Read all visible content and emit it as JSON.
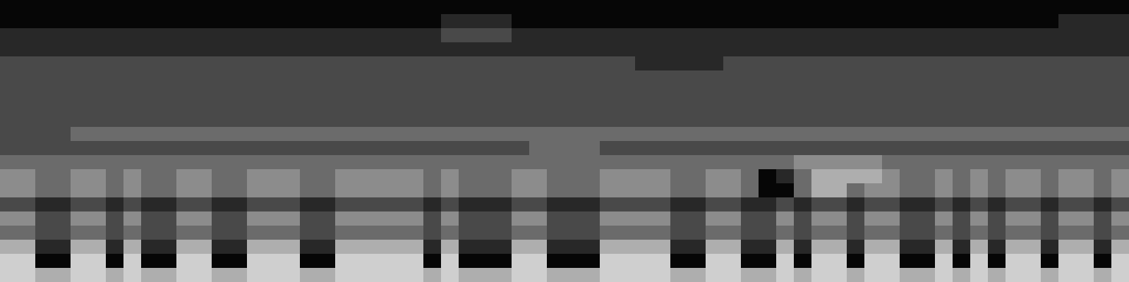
{
  "chart_data": {
    "type": "heatmap",
    "tick_labels": false,
    "cells": [
      [
        1,
        1,
        1,
        1,
        1,
        1,
        1,
        1,
        1,
        1,
        1,
        1,
        1,
        1,
        1,
        1,
        1,
        1,
        1,
        1,
        1,
        1,
        1,
        1,
        1,
        1,
        1,
        1,
        1,
        1,
        1,
        1,
        1,
        1,
        1,
        1,
        1,
        1,
        1,
        1,
        1,
        1,
        1,
        1,
        1,
        1,
        1,
        1,
        1,
        1,
        1,
        1,
        1,
        1,
        1,
        1,
        1,
        1,
        1,
        1,
        1,
        1,
        1,
        1
      ],
      [
        1,
        1,
        1,
        1,
        1,
        1,
        1,
        1,
        1,
        1,
        1,
        1,
        1,
        1,
        1,
        1,
        1,
        1,
        1,
        1,
        1,
        1,
        1,
        1,
        1,
        2,
        2,
        2,
        2,
        1,
        1,
        1,
        1,
        1,
        1,
        1,
        1,
        1,
        1,
        1,
        1,
        1,
        1,
        1,
        1,
        1,
        1,
        1,
        1,
        1,
        1,
        1,
        1,
        1,
        1,
        1,
        1,
        1,
        1,
        1,
        2,
        2,
        2,
        2
      ],
      [
        2,
        2,
        2,
        2,
        2,
        2,
        2,
        2,
        2,
        2,
        2,
        2,
        2,
        2,
        2,
        2,
        2,
        2,
        2,
        2,
        2,
        2,
        2,
        2,
        2,
        3,
        3,
        3,
        3,
        2,
        2,
        2,
        2,
        2,
        2,
        2,
        2,
        2,
        2,
        2,
        2,
        2,
        2,
        2,
        2,
        2,
        2,
        2,
        2,
        2,
        2,
        2,
        2,
        2,
        2,
        2,
        2,
        2,
        2,
        2,
        2,
        2,
        2,
        2
      ],
      [
        2,
        2,
        2,
        2,
        2,
        2,
        2,
        2,
        2,
        2,
        2,
        2,
        2,
        2,
        2,
        2,
        2,
        2,
        2,
        2,
        2,
        2,
        2,
        2,
        2,
        2,
        2,
        2,
        2,
        2,
        2,
        2,
        2,
        2,
        2,
        2,
        2,
        2,
        2,
        2,
        2,
        2,
        2,
        2,
        2,
        2,
        2,
        2,
        2,
        2,
        2,
        2,
        2,
        2,
        2,
        2,
        2,
        2,
        2,
        2,
        2,
        2,
        2,
        2
      ],
      [
        3,
        3,
        3,
        3,
        3,
        3,
        3,
        3,
        3,
        3,
        3,
        3,
        3,
        3,
        3,
        3,
        3,
        3,
        3,
        3,
        3,
        3,
        3,
        3,
        3,
        3,
        3,
        3,
        3,
        3,
        3,
        3,
        3,
        3,
        3,
        3,
        2,
        2,
        2,
        2,
        2,
        3,
        3,
        3,
        3,
        3,
        3,
        3,
        3,
        3,
        3,
        3,
        3,
        3,
        3,
        3,
        3,
        3,
        3,
        3,
        3,
        3,
        3,
        3
      ],
      [
        3,
        3,
        3,
        3,
        3,
        3,
        3,
        3,
        3,
        3,
        3,
        3,
        3,
        3,
        3,
        3,
        3,
        3,
        3,
        3,
        3,
        3,
        3,
        3,
        3,
        3,
        3,
        3,
        3,
        3,
        3,
        3,
        3,
        3,
        3,
        3,
        3,
        3,
        3,
        3,
        3,
        3,
        3,
        3,
        3,
        3,
        3,
        3,
        3,
        3,
        3,
        3,
        3,
        3,
        3,
        3,
        3,
        3,
        3,
        3,
        3,
        3,
        3,
        3
      ],
      [
        3,
        3,
        3,
        3,
        3,
        3,
        3,
        3,
        3,
        3,
        3,
        3,
        3,
        3,
        3,
        3,
        3,
        3,
        3,
        3,
        3,
        3,
        3,
        3,
        3,
        3,
        3,
        3,
        3,
        3,
        3,
        3,
        3,
        3,
        3,
        3,
        3,
        3,
        3,
        3,
        3,
        3,
        3,
        3,
        3,
        3,
        3,
        3,
        3,
        3,
        3,
        3,
        3,
        3,
        3,
        3,
        3,
        3,
        3,
        3,
        3,
        3,
        3,
        3
      ],
      [
        3,
        3,
        3,
        3,
        3,
        3,
        3,
        3,
        3,
        3,
        3,
        3,
        3,
        3,
        3,
        3,
        3,
        3,
        3,
        3,
        3,
        3,
        3,
        3,
        3,
        3,
        3,
        3,
        3,
        3,
        3,
        3,
        3,
        3,
        3,
        3,
        3,
        3,
        3,
        3,
        3,
        3,
        3,
        3,
        3,
        3,
        3,
        3,
        3,
        3,
        3,
        3,
        3,
        3,
        3,
        3,
        3,
        3,
        3,
        3,
        3,
        3,
        3,
        3
      ],
      [
        3,
        3,
        3,
        3,
        3,
        3,
        3,
        3,
        3,
        3,
        3,
        3,
        3,
        3,
        3,
        3,
        3,
        3,
        3,
        3,
        3,
        3,
        3,
        3,
        3,
        3,
        3,
        3,
        3,
        3,
        3,
        3,
        3,
        3,
        3,
        3,
        3,
        3,
        3,
        3,
        3,
        3,
        3,
        3,
        3,
        3,
        3,
        3,
        3,
        3,
        3,
        3,
        3,
        3,
        3,
        3,
        3,
        3,
        3,
        3,
        3,
        3,
        3,
        3
      ],
      [
        3,
        3,
        3,
        3,
        4,
        4,
        4,
        4,
        4,
        4,
        4,
        4,
        4,
        4,
        4,
        4,
        4,
        4,
        4,
        4,
        4,
        4,
        4,
        4,
        4,
        4,
        4,
        4,
        4,
        4,
        4,
        4,
        4,
        4,
        4,
        4,
        4,
        4,
        4,
        4,
        4,
        4,
        4,
        4,
        4,
        4,
        4,
        4,
        4,
        4,
        4,
        4,
        4,
        4,
        4,
        4,
        4,
        4,
        4,
        4,
        4,
        4,
        4,
        4
      ],
      [
        3,
        3,
        3,
        3,
        3,
        3,
        3,
        3,
        3,
        3,
        3,
        3,
        3,
        3,
        3,
        3,
        3,
        3,
        3,
        3,
        3,
        3,
        3,
        3,
        3,
        3,
        3,
        3,
        3,
        3,
        4,
        4,
        4,
        4,
        3,
        3,
        3,
        3,
        3,
        3,
        3,
        3,
        3,
        3,
        3,
        3,
        3,
        3,
        3,
        3,
        3,
        3,
        3,
        3,
        3,
        3,
        3,
        3,
        3,
        3,
        3,
        3,
        3,
        3
      ],
      [
        4,
        4,
        4,
        4,
        4,
        4,
        4,
        4,
        4,
        4,
        4,
        4,
        4,
        4,
        4,
        4,
        4,
        4,
        4,
        4,
        4,
        4,
        4,
        4,
        4,
        4,
        4,
        4,
        4,
        4,
        4,
        4,
        4,
        4,
        4,
        4,
        4,
        4,
        4,
        4,
        4,
        4,
        4,
        4,
        4,
        5,
        5,
        5,
        5,
        5,
        4,
        4,
        4,
        4,
        4,
        4,
        4,
        4,
        4,
        4,
        4,
        4,
        4,
        4
      ],
      [
        5,
        5,
        4,
        4,
        5,
        5,
        4,
        5,
        4,
        4,
        5,
        5,
        4,
        4,
        5,
        5,
        5,
        4,
        4,
        5,
        5,
        5,
        5,
        5,
        4,
        5,
        4,
        4,
        4,
        5,
        5,
        4,
        4,
        4,
        5,
        5,
        5,
        5,
        4,
        4,
        5,
        5,
        4,
        1,
        2,
        4,
        6,
        6,
        6,
        6,
        5,
        4,
        4,
        5,
        4,
        5,
        4,
        5,
        5,
        4,
        5,
        5,
        4,
        5
      ],
      [
        5,
        5,
        4,
        4,
        5,
        5,
        4,
        5,
        4,
        4,
        5,
        5,
        4,
        4,
        5,
        5,
        5,
        4,
        4,
        5,
        5,
        5,
        5,
        5,
        4,
        5,
        4,
        4,
        4,
        5,
        5,
        4,
        4,
        4,
        5,
        5,
        5,
        5,
        4,
        4,
        5,
        5,
        4,
        1,
        1,
        4,
        6,
        6,
        4,
        5,
        5,
        4,
        4,
        5,
        4,
        5,
        4,
        5,
        5,
        4,
        5,
        5,
        4,
        5
      ],
      [
        3,
        3,
        2,
        2,
        3,
        3,
        2,
        3,
        2,
        2,
        3,
        3,
        2,
        2,
        3,
        3,
        3,
        2,
        2,
        3,
        3,
        3,
        3,
        3,
        2,
        3,
        2,
        2,
        2,
        3,
        3,
        2,
        2,
        2,
        3,
        3,
        3,
        3,
        2,
        2,
        3,
        3,
        2,
        2,
        3,
        2,
        3,
        3,
        2,
        3,
        3,
        2,
        2,
        3,
        2,
        3,
        2,
        3,
        3,
        2,
        3,
        3,
        2,
        3
      ],
      [
        5,
        5,
        3,
        3,
        5,
        5,
        3,
        5,
        3,
        3,
        5,
        5,
        3,
        3,
        5,
        5,
        5,
        3,
        3,
        5,
        5,
        5,
        5,
        5,
        3,
        5,
        3,
        3,
        3,
        5,
        5,
        3,
        3,
        3,
        5,
        5,
        5,
        5,
        3,
        3,
        5,
        5,
        3,
        3,
        5,
        3,
        5,
        5,
        3,
        5,
        5,
        3,
        3,
        5,
        3,
        5,
        3,
        5,
        5,
        3,
        5,
        5,
        3,
        5
      ],
      [
        4,
        4,
        3,
        3,
        4,
        4,
        3,
        4,
        3,
        3,
        4,
        4,
        3,
        3,
        4,
        4,
        4,
        3,
        3,
        4,
        4,
        4,
        4,
        4,
        3,
        4,
        3,
        3,
        3,
        4,
        4,
        3,
        3,
        3,
        4,
        4,
        4,
        4,
        3,
        3,
        4,
        4,
        3,
        3,
        4,
        3,
        4,
        4,
        3,
        4,
        4,
        3,
        3,
        4,
        3,
        4,
        3,
        4,
        4,
        3,
        4,
        4,
        3,
        4
      ],
      [
        6,
        6,
        2,
        2,
        6,
        6,
        2,
        6,
        2,
        2,
        6,
        6,
        2,
        2,
        6,
        6,
        6,
        2,
        2,
        6,
        6,
        6,
        6,
        6,
        2,
        6,
        2,
        2,
        2,
        6,
        6,
        2,
        2,
        2,
        6,
        6,
        6,
        6,
        2,
        2,
        6,
        6,
        2,
        2,
        6,
        2,
        6,
        6,
        2,
        6,
        6,
        2,
        2,
        6,
        2,
        6,
        2,
        6,
        6,
        2,
        6,
        6,
        2,
        6
      ],
      [
        7,
        7,
        1,
        1,
        7,
        7,
        1,
        7,
        1,
        1,
        7,
        7,
        1,
        1,
        7,
        7,
        7,
        1,
        1,
        7,
        7,
        7,
        7,
        7,
        1,
        7,
        1,
        1,
        1,
        7,
        7,
        1,
        1,
        1,
        7,
        7,
        7,
        7,
        1,
        1,
        7,
        7,
        1,
        1,
        7,
        1,
        7,
        7,
        1,
        7,
        7,
        1,
        1,
        7,
        1,
        7,
        1,
        7,
        7,
        1,
        7,
        7,
        1,
        7
      ],
      [
        7,
        7,
        6,
        6,
        7,
        7,
        6,
        7,
        6,
        6,
        7,
        7,
        6,
        6,
        7,
        7,
        7,
        6,
        6,
        7,
        7,
        7,
        7,
        7,
        6,
        7,
        6,
        6,
        6,
        7,
        7,
        6,
        6,
        6,
        7,
        7,
        7,
        7,
        6,
        6,
        7,
        7,
        6,
        6,
        7,
        6,
        7,
        7,
        6,
        7,
        7,
        6,
        6,
        7,
        6,
        7,
        6,
        7,
        7,
        6,
        7,
        7,
        6,
        7
      ]
    ]
  }
}
